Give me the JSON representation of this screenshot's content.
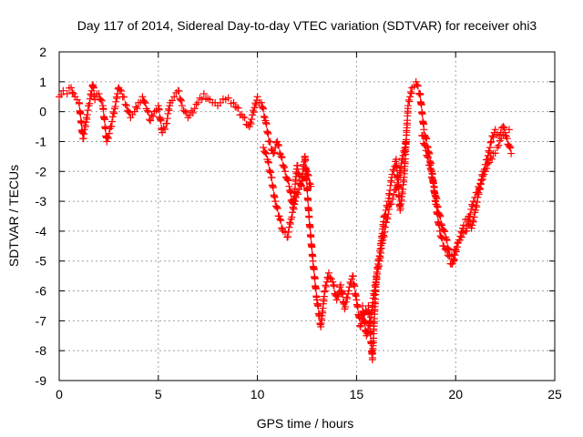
{
  "colors": {
    "series": "#ff0000",
    "axis": "#000000",
    "grid": "#a0a0a0"
  },
  "chart_data": {
    "type": "scatter",
    "title": "Day 117 of 2014, Sidereal Day-to-day VTEC variation (SDTVAR) for receiver ohi3",
    "xlabel": "GPS time / hours",
    "ylabel": "SDTVAR / TECUs",
    "xlim": [
      0,
      25
    ],
    "ylim": [
      -9,
      2
    ],
    "xticks": [
      0,
      5,
      10,
      15,
      20,
      25
    ],
    "yticks": [
      -9,
      -8,
      -7,
      -6,
      -5,
      -4,
      -3,
      -2,
      -1,
      0,
      1,
      2
    ],
    "grid": true,
    "marker": "plus",
    "series": [
      {
        "name": "ohi3",
        "x": [
          0.0,
          0.2,
          0.4,
          0.6,
          0.8,
          1.0,
          1.2,
          1.5,
          1.7,
          1.8,
          2.0,
          2.2,
          2.4,
          2.6,
          2.8,
          3.0,
          3.2,
          3.4,
          3.6,
          3.8,
          4.0,
          4.2,
          4.4,
          4.6,
          4.8,
          5.0,
          5.2,
          5.4,
          5.6,
          5.8,
          6.0,
          6.2,
          6.5,
          7.0,
          7.3,
          7.6,
          8.0,
          8.4,
          8.8,
          9.2,
          9.6,
          10.0,
          10.2,
          10.4,
          10.6,
          10.8,
          11.0,
          11.2,
          11.4,
          11.6,
          11.8,
          12.0,
          12.2,
          12.4,
          12.6,
          12.8,
          13.0,
          13.2,
          13.4,
          13.6,
          13.8,
          14.0,
          14.2,
          14.4,
          14.6,
          14.8,
          15.0,
          15.2,
          15.4,
          15.6,
          15.8,
          16.0,
          16.2,
          16.4,
          16.6,
          16.8,
          17.0,
          17.2,
          17.4,
          17.6,
          17.8,
          18.0,
          18.2,
          18.4,
          18.6,
          18.8,
          19.0,
          19.2,
          19.4,
          19.6,
          19.8,
          20.0,
          20.2,
          20.4,
          20.6,
          20.8,
          21.0,
          21.2,
          21.4,
          21.6,
          21.8,
          22.0,
          22.2,
          22.4,
          22.6,
          22.8
        ],
        "y": [
          0.5,
          0.7,
          0.6,
          0.8,
          0.5,
          0.3,
          -0.9,
          0.2,
          0.9,
          0.4,
          0.6,
          0.2,
          -1.0,
          -0.5,
          0.1,
          0.8,
          0.5,
          0.2,
          -0.2,
          0.0,
          0.3,
          0.5,
          0.1,
          -0.3,
          0.0,
          0.2,
          -0.7,
          -0.4,
          0.3,
          0.5,
          0.7,
          0.2,
          -0.2,
          0.3,
          0.6,
          0.4,
          0.2,
          0.4,
          0.3,
          -0.1,
          -0.5,
          0.5,
          0.3,
          -0.3,
          -1.0,
          -1.4,
          -1.0,
          -1.5,
          -2.0,
          -2.5,
          -3.2,
          -1.8,
          -2.5,
          -1.5,
          -3.5,
          -5.0,
          -6.3,
          -7.2,
          -6.0,
          -5.4,
          -5.7,
          -6.3,
          -5.8,
          -6.6,
          -6.0,
          -5.5,
          -6.3,
          -7.2,
          -6.8,
          -6.5,
          -8.3,
          -5.5,
          -4.6,
          -3.5,
          -3.0,
          -2.1,
          -1.6,
          -3.3,
          -2.2,
          0.2,
          0.8,
          1.0,
          0.6,
          -0.6,
          -1.2,
          -2.0,
          -3.1,
          -4.0,
          -4.5,
          -4.8,
          -5.1,
          -4.6,
          -4.3,
          -3.8,
          -3.6,
          -3.9,
          -3.3,
          -2.6,
          -2.0,
          -1.6,
          -1.0,
          -0.6,
          -0.8,
          -0.5,
          -0.9,
          -1.4
        ],
        "x2": [
          10.3,
          10.5,
          10.7,
          10.9,
          11.1,
          11.3,
          11.5,
          11.7,
          11.9,
          12.1,
          12.3,
          12.5,
          12.7,
          15.3,
          15.5,
          15.7,
          15.9,
          16.1,
          16.3,
          16.5,
          16.7,
          17.0,
          17.5,
          18.3,
          18.5,
          18.7,
          18.9,
          19.1,
          19.3,
          19.5,
          19.7,
          19.9,
          20.1,
          20.3,
          20.5,
          20.7,
          20.9,
          21.1,
          21.3,
          21.5,
          21.7,
          21.9,
          22.1,
          22.3,
          22.5,
          22.7
        ],
        "y2": [
          -1.2,
          -1.6,
          -2.2,
          -3.0,
          -3.5,
          -4.0,
          -4.2,
          -3.6,
          -3.0,
          -2.6,
          -2.2,
          -2.0,
          -2.5,
          -6.5,
          -7.5,
          -7.0,
          -6.0,
          -5.2,
          -4.4,
          -3.7,
          -3.1,
          -2.6,
          -1.0,
          -0.8,
          -1.3,
          -1.8,
          -2.5,
          -3.2,
          -3.8,
          -4.2,
          -4.8,
          -5.0,
          -4.4,
          -4.2,
          -4.0,
          -3.5,
          -3.0,
          -2.7,
          -2.3,
          -2.0,
          -1.7,
          -1.4,
          -1.2,
          -0.9,
          -0.7,
          -0.6
        ]
      }
    ]
  }
}
